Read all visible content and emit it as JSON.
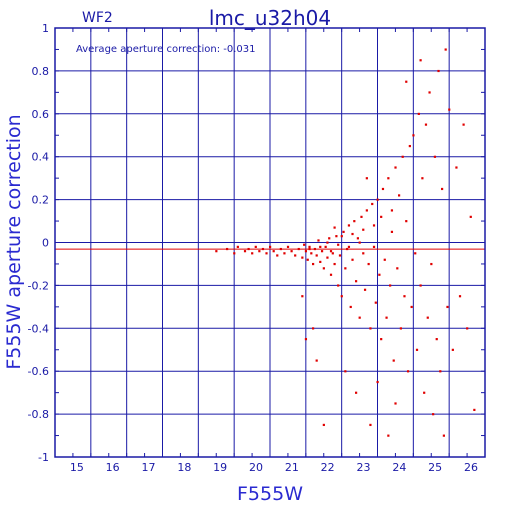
{
  "colors": {
    "axis": "#1a1aa6",
    "grid": "#1a1aa6",
    "points": "#e00000",
    "avg_line": "#e00000",
    "text": "#1a1aa6"
  },
  "chart_data": {
    "type": "scatter",
    "chip_label": "WF2",
    "title": "lmc_u32h04",
    "annotation": "Average aperture correction: -0.031",
    "average_correction": -0.031,
    "xlabel": "F555W",
    "ylabel": "F555W aperture correction",
    "xlim": [
      14,
      26
    ],
    "ylim": [
      -1,
      1
    ],
    "xticks": [
      15,
      16,
      17,
      18,
      19,
      20,
      21,
      22,
      23,
      24,
      25,
      26
    ],
    "yticks": [
      -1,
      -0.8,
      -0.6,
      -0.4,
      -0.2,
      0,
      0.2,
      0.4,
      0.6,
      0.8,
      1
    ],
    "xticklabels": [
      "15",
      "16",
      "17",
      "18",
      "19",
      "20",
      "21",
      "22",
      "23",
      "24",
      "25",
      "26"
    ],
    "yticklabels": [
      "-1",
      "-0.8",
      "-0.6",
      "-0.4",
      "-0.2",
      "0",
      "0.2",
      "0.4",
      "0.6",
      "0.8",
      "1"
    ],
    "grid": true,
    "series": [
      {
        "points": [
          [
            18.5,
            -0.04
          ],
          [
            18.8,
            -0.03
          ],
          [
            19.0,
            -0.05
          ],
          [
            19.1,
            -0.02
          ],
          [
            19.3,
            -0.04
          ],
          [
            19.4,
            -0.03
          ],
          [
            19.5,
            -0.05
          ],
          [
            19.6,
            -0.02
          ],
          [
            19.7,
            -0.04
          ],
          [
            19.8,
            -0.03
          ],
          [
            19.9,
            -0.05
          ],
          [
            20.0,
            -0.02
          ],
          [
            20.1,
            -0.04
          ],
          [
            20.2,
            -0.06
          ],
          [
            20.3,
            -0.03
          ],
          [
            20.4,
            -0.05
          ],
          [
            20.5,
            -0.02
          ],
          [
            20.6,
            -0.04
          ],
          [
            20.7,
            -0.06
          ],
          [
            20.8,
            -0.03
          ],
          [
            20.9,
            -0.07
          ],
          [
            20.95,
            -0.01
          ],
          [
            21.0,
            -0.04
          ],
          [
            21.05,
            -0.08
          ],
          [
            21.1,
            -0.02
          ],
          [
            21.15,
            -0.05
          ],
          [
            21.2,
            -0.1
          ],
          [
            21.25,
            -0.03
          ],
          [
            21.3,
            -0.06
          ],
          [
            21.35,
            0.01
          ],
          [
            21.4,
            -0.09
          ],
          [
            21.45,
            -0.04
          ],
          [
            21.5,
            -0.12
          ],
          [
            21.55,
            -0.02
          ],
          [
            21.6,
            -0.07
          ],
          [
            21.65,
            0.02
          ],
          [
            21.7,
            -0.15
          ],
          [
            21.75,
            -0.05
          ],
          [
            21.8,
            -0.1
          ],
          [
            21.85,
            0.03
          ],
          [
            21.9,
            -0.2
          ],
          [
            21.95,
            -0.06
          ],
          [
            22.0,
            -0.25
          ],
          [
            22.05,
            0.05
          ],
          [
            22.1,
            -0.12
          ],
          [
            22.15,
            -0.03
          ],
          [
            22.2,
            0.08
          ],
          [
            22.25,
            -0.3
          ],
          [
            22.3,
            -0.08
          ],
          [
            22.35,
            0.1
          ],
          [
            22.4,
            -0.18
          ],
          [
            22.45,
            0.02
          ],
          [
            22.5,
            -0.35
          ],
          [
            22.55,
            0.12
          ],
          [
            22.6,
            -0.05
          ],
          [
            22.65,
            -0.22
          ],
          [
            22.7,
            0.15
          ],
          [
            22.75,
            -0.1
          ],
          [
            22.8,
            -0.4
          ],
          [
            22.85,
            0.18
          ],
          [
            22.9,
            -0.02
          ],
          [
            22.95,
            -0.28
          ],
          [
            23.0,
            0.2
          ],
          [
            23.05,
            -0.15
          ],
          [
            23.1,
            -0.45
          ],
          [
            23.15,
            0.25
          ],
          [
            23.2,
            -0.08
          ],
          [
            23.25,
            -0.35
          ],
          [
            23.3,
            0.3
          ],
          [
            23.35,
            -0.2
          ],
          [
            23.4,
            0.05
          ],
          [
            23.45,
            -0.55
          ],
          [
            23.5,
            0.35
          ],
          [
            23.55,
            -0.12
          ],
          [
            23.6,
            0.22
          ],
          [
            23.65,
            -0.4
          ],
          [
            23.7,
            0.4
          ],
          [
            23.75,
            -0.25
          ],
          [
            23.8,
            0.1
          ],
          [
            23.85,
            -0.6
          ],
          [
            23.9,
            0.45
          ],
          [
            23.95,
            -0.3
          ],
          [
            24.0,
            0.5
          ],
          [
            24.05,
            -0.05
          ],
          [
            24.1,
            -0.5
          ],
          [
            24.15,
            0.6
          ],
          [
            24.2,
            -0.2
          ],
          [
            24.25,
            0.3
          ],
          [
            24.3,
            -0.7
          ],
          [
            24.35,
            0.55
          ],
          [
            24.4,
            -0.35
          ],
          [
            24.45,
            0.7
          ],
          [
            24.5,
            -0.1
          ],
          [
            24.55,
            -0.8
          ],
          [
            24.6,
            0.4
          ],
          [
            24.65,
            -0.45
          ],
          [
            24.7,
            0.8
          ],
          [
            24.75,
            -0.6
          ],
          [
            24.8,
            0.25
          ],
          [
            24.85,
            -0.9
          ],
          [
            24.9,
            0.9
          ],
          [
            24.95,
            -0.3
          ],
          [
            25.0,
            0.62
          ],
          [
            25.1,
            -0.5
          ],
          [
            25.2,
            0.35
          ],
          [
            25.3,
            -0.25
          ],
          [
            25.4,
            0.55
          ],
          [
            25.5,
            -0.4
          ],
          [
            25.6,
            0.12
          ],
          [
            25.7,
            -0.78
          ],
          [
            21.0,
            -0.45
          ],
          [
            21.3,
            -0.55
          ],
          [
            21.5,
            -0.85
          ],
          [
            22.1,
            -0.6
          ],
          [
            22.4,
            -0.7
          ],
          [
            23.0,
            -0.65
          ],
          [
            23.3,
            -0.9
          ],
          [
            20.9,
            -0.25
          ],
          [
            21.2,
            -0.4
          ],
          [
            22.7,
            0.3
          ],
          [
            23.8,
            0.75
          ],
          [
            24.2,
            0.85
          ],
          [
            22.8,
            -0.85
          ],
          [
            23.5,
            -0.75
          ],
          [
            21.8,
            0.07
          ],
          [
            22.0,
            0.03
          ],
          [
            21.9,
            -0.01
          ],
          [
            22.2,
            -0.02
          ],
          [
            22.3,
            0.04
          ],
          [
            22.6,
            0.06
          ],
          [
            23.1,
            0.12
          ],
          [
            23.4,
            0.15
          ],
          [
            21.1,
            -0.03
          ],
          [
            21.4,
            -0.02
          ],
          [
            21.6,
            0.0
          ],
          [
            21.7,
            -0.04
          ],
          [
            22.5,
            0.0
          ],
          [
            22.9,
            0.08
          ]
        ]
      }
    ]
  }
}
